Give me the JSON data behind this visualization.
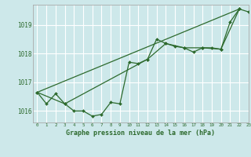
{
  "background_color": "#cde8ea",
  "plot_bg_color": "#cde8ea",
  "grid_color": "#ffffff",
  "line_color": "#2d6a2d",
  "marker_color": "#2d6a2d",
  "xlabel": "Graphe pression niveau de la mer (hPa)",
  "xlim": [
    -0.5,
    23
  ],
  "ylim": [
    1015.6,
    1019.7
  ],
  "yticks": [
    1016,
    1017,
    1018,
    1019
  ],
  "xticks": [
    0,
    1,
    2,
    3,
    4,
    5,
    6,
    7,
    8,
    9,
    10,
    11,
    12,
    13,
    14,
    15,
    16,
    17,
    18,
    19,
    20,
    21,
    22,
    23
  ],
  "line1_data_x": [
    0,
    1,
    2,
    3,
    4,
    5,
    6,
    7,
    8,
    9,
    10,
    11,
    12,
    13,
    14,
    15,
    16,
    17,
    18,
    19,
    20,
    21,
    22,
    23
  ],
  "line1_data_y": [
    1016.65,
    1016.25,
    1016.6,
    1016.25,
    1016.0,
    1016.0,
    1015.82,
    1015.88,
    1016.3,
    1016.25,
    1017.7,
    1017.65,
    1017.8,
    1018.5,
    1018.35,
    1018.25,
    1018.2,
    1018.05,
    1018.2,
    1018.2,
    1018.15,
    1019.1,
    1019.55,
    1019.45
  ],
  "line2_data_x": [
    0,
    3,
    12,
    14,
    16,
    18,
    20,
    22
  ],
  "line2_data_y": [
    1016.65,
    1016.25,
    1017.8,
    1018.35,
    1018.2,
    1018.2,
    1018.15,
    1019.55
  ],
  "line3_data_x": [
    0,
    22
  ],
  "line3_data_y": [
    1016.65,
    1019.55
  ]
}
